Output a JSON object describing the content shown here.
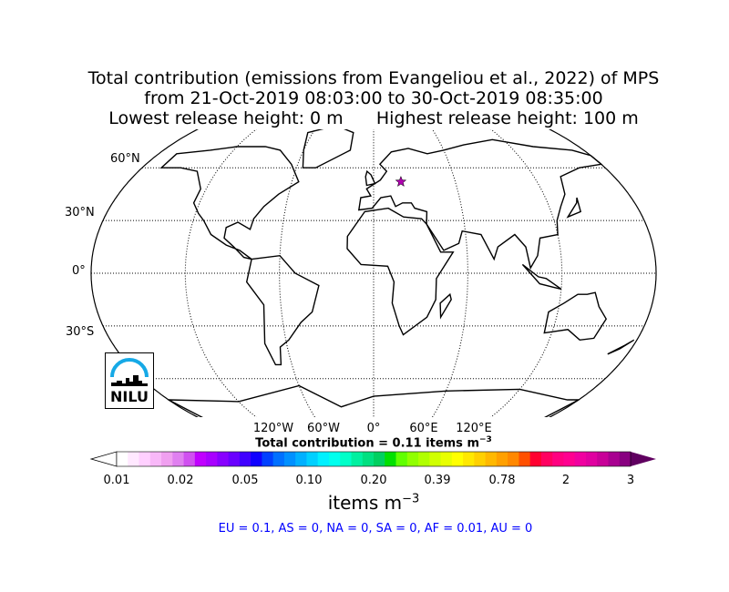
{
  "title": {
    "line1": "Total contribution (emissions from Evangeliou et al., 2022) of MPS",
    "line2": "from 21-Oct-2019 08:03:00 to 30-Oct-2019 08:35:00",
    "line3": "Lowest release height: 0 m      Highest release height: 100 m"
  },
  "map": {
    "projection": "robinson",
    "lat_labels": [
      "60°N",
      "30°N",
      "0°",
      "30°S"
    ],
    "lon_labels": [
      "120°W",
      "60°W",
      "0°",
      "60°E",
      "120°E"
    ],
    "marker": {
      "icon": "star-icon",
      "color": "#b000b0",
      "lon": 20,
      "lat": 52
    },
    "logo": "NILU"
  },
  "total": {
    "prefix": "Total contribution = 0.11 items m",
    "sup": "−3"
  },
  "colorbar": {
    "ticks": [
      "0.01",
      "0.02",
      "0.05",
      "0.10",
      "0.20",
      "0.39",
      "0.78",
      "2",
      "3"
    ],
    "colors": [
      "#ffffff",
      "#ffe8ff",
      "#ffd0ff",
      "#f8b8f8",
      "#f0a0f0",
      "#e080f0",
      "#d050f0",
      "#c000ff",
      "#a800ff",
      "#8800ff",
      "#6a00ff",
      "#4000ff",
      "#1000ff",
      "#0040ff",
      "#0070ff",
      "#0090ff",
      "#00b0ff",
      "#00d0ff",
      "#00f0ff",
      "#00ffee",
      "#00ffc8",
      "#00f0a0",
      "#00e080",
      "#00d060",
      "#00e000",
      "#60ff00",
      "#90ff00",
      "#b0ff00",
      "#d0ff00",
      "#e8ff00",
      "#ffff00",
      "#ffe800",
      "#ffd000",
      "#ffb800",
      "#ffa000",
      "#ff8800",
      "#ff5000",
      "#ff0030",
      "#ff0060",
      "#ff0080",
      "#ff0090",
      "#f000a0",
      "#e000a0",
      "#c80098",
      "#a80090",
      "#880080"
    ],
    "over_color": "#600060",
    "unit_prefix": "items m",
    "unit_sup": "−3"
  },
  "summary": "EU = 0.1,  AS = 0,  NA = 0,  SA = 0,  AF = 0.01,  AU = 0"
}
